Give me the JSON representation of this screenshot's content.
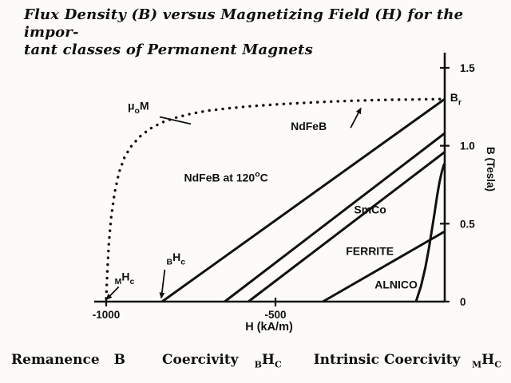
{
  "title": {
    "line1": "Flux Density (B) versus Magnetizing Field (H) for the impor-",
    "line2": "tant classes of Permanent Magnets"
  },
  "caption": {
    "remanence_label": "Remanence",
    "remanence_symbol": "B",
    "coercivity_label": "Coercivity",
    "coercivity_pre": "B",
    "coercivity_main": "H",
    "coercivity_sub": "C",
    "intrinsic_label": "Intrinsic Coercivity",
    "intrinsic_pre": "M",
    "intrinsic_main": "H",
    "intrinsic_sub": "C"
  },
  "chart_data": {
    "type": "line",
    "title": "Flux Density (B) versus Magnetizing Field (H) for the important classes of Permanent Magnets",
    "xlabel": "H (kA/m)",
    "ylabel": "B (Tesla)",
    "xlim": [
      -1060,
      0
    ],
    "ylim": [
      0,
      1.55
    ],
    "grid": false,
    "legend": "none",
    "ink_color": "#111111",
    "x_ticks": [
      {
        "v": -1000,
        "label": "-1000"
      },
      {
        "v": -500,
        "label": "-500"
      }
    ],
    "y_ticks": [
      {
        "v": 0,
        "label": "0"
      },
      {
        "v": 0.5,
        "label": "0.5"
      },
      {
        "v": 1.0,
        "label": "1.0"
      },
      {
        "v": 1.5,
        "label": "1.5"
      }
    ],
    "series": [
      {
        "id": "mu0M",
        "name": "μoM intrinsic curve (NdFeB)",
        "style": "dotted",
        "points": [
          [
            -1000,
            0.02
          ],
          [
            -997,
            0.18
          ],
          [
            -992,
            0.38
          ],
          [
            -985,
            0.55
          ],
          [
            -975,
            0.7
          ],
          [
            -962,
            0.83
          ],
          [
            -945,
            0.93
          ],
          [
            -925,
            1.0
          ],
          [
            -900,
            1.06
          ],
          [
            -870,
            1.11
          ],
          [
            -835,
            1.15
          ],
          [
            -795,
            1.18
          ],
          [
            -750,
            1.205
          ],
          [
            -700,
            1.225
          ],
          [
            -640,
            1.24
          ],
          [
            -580,
            1.253
          ],
          [
            -520,
            1.262
          ],
          [
            -460,
            1.27
          ],
          [
            -400,
            1.277
          ],
          [
            -340,
            1.283
          ],
          [
            -280,
            1.288
          ],
          [
            -220,
            1.292
          ],
          [
            -160,
            1.295
          ],
          [
            -100,
            1.297
          ],
          [
            -40,
            1.299
          ],
          [
            0,
            1.3
          ]
        ]
      },
      {
        "id": "ndfeb",
        "name": "NdFeB",
        "style": "solid",
        "points": [
          [
            -835,
            0
          ],
          [
            0,
            1.3
          ]
        ]
      },
      {
        "id": "ndfeb120",
        "name": "NdFeB at 120°C",
        "style": "solid",
        "points": [
          [
            -650,
            0
          ],
          [
            0,
            1.08
          ]
        ]
      },
      {
        "id": "smco",
        "name": "SmCo",
        "style": "solid",
        "points": [
          [
            -580,
            0
          ],
          [
            0,
            0.96
          ]
        ]
      },
      {
        "id": "ferrite",
        "name": "FERRITE",
        "style": "solid",
        "points": [
          [
            -360,
            0
          ],
          [
            0,
            0.45
          ]
        ]
      },
      {
        "id": "alnico",
        "name": "ALNICO",
        "style": "solid",
        "points": [
          [
            -85,
            0
          ],
          [
            -70,
            0.1
          ],
          [
            -57,
            0.22
          ],
          [
            -47,
            0.34
          ],
          [
            -38,
            0.46
          ],
          [
            -30,
            0.57
          ],
          [
            -23,
            0.67
          ],
          [
            -16,
            0.76
          ],
          [
            -9,
            0.83
          ],
          [
            -3,
            0.875
          ],
          [
            0,
            0.885
          ]
        ]
      }
    ],
    "annotations": [
      {
        "id": "mu0M-label",
        "parts": [
          {
            "t": "μ"
          },
          {
            "t": "o",
            "sub": true
          },
          {
            "t": "M"
          }
        ],
        "h": -905,
        "b": 1.23,
        "anchor": "middle",
        "pointer": {
          "h1": -842,
          "b1": 1.185,
          "h2": -750,
          "b2": 1.14,
          "arrow": false
        }
      },
      {
        "id": "ndfeb-label",
        "parts": [
          {
            "t": "NdFeB"
          }
        ],
        "h": -455,
        "b": 1.1,
        "anchor": "start",
        "pointer": {
          "h1": -278,
          "b1": 1.115,
          "h2": -248,
          "b2": 1.24,
          "arrow": true
        }
      },
      {
        "id": "ndfeb120-label",
        "parts": [
          {
            "t": "NdFeB at 120"
          },
          {
            "t": "o",
            "sup": true
          },
          {
            "t": "C"
          }
        ],
        "h": -770,
        "b": 0.77,
        "anchor": "start"
      },
      {
        "id": "smco-label",
        "parts": [
          {
            "t": "SmCo"
          }
        ],
        "h": -268,
        "b": 0.565,
        "anchor": "start"
      },
      {
        "id": "ferrite-label",
        "parts": [
          {
            "t": "FERRITE"
          }
        ],
        "h": -292,
        "b": 0.3,
        "anchor": "start"
      },
      {
        "id": "alnico-label",
        "parts": [
          {
            "t": "ALNICO"
          }
        ],
        "h": -207,
        "b": 0.085,
        "anchor": "start"
      },
      {
        "id": "mhc-label",
        "parts": [
          {
            "t": "M",
            "sub": true
          },
          {
            "t": "H"
          },
          {
            "t": "c",
            "sub": true
          }
        ],
        "h": -975,
        "b": 0.135,
        "anchor": "start",
        "pointer": {
          "h1": -963,
          "b1": 0.095,
          "h2": -999,
          "b2": 0.015,
          "arrow": true
        }
      },
      {
        "id": "bhc-label",
        "parts": [
          {
            "t": "B",
            "sub": true
          },
          {
            "t": "H"
          },
          {
            "t": "c",
            "sub": true
          }
        ],
        "h": -822,
        "b": 0.26,
        "anchor": "start",
        "pointer": {
          "h1": -827,
          "b1": 0.205,
          "h2": -837,
          "b2": 0.025,
          "arrow": true
        }
      },
      {
        "id": "br-label",
        "parts": [
          {
            "t": "B"
          },
          {
            "t": "r",
            "sub": true
          }
        ],
        "h": 16,
        "b": 1.285,
        "anchor": "start"
      }
    ]
  }
}
